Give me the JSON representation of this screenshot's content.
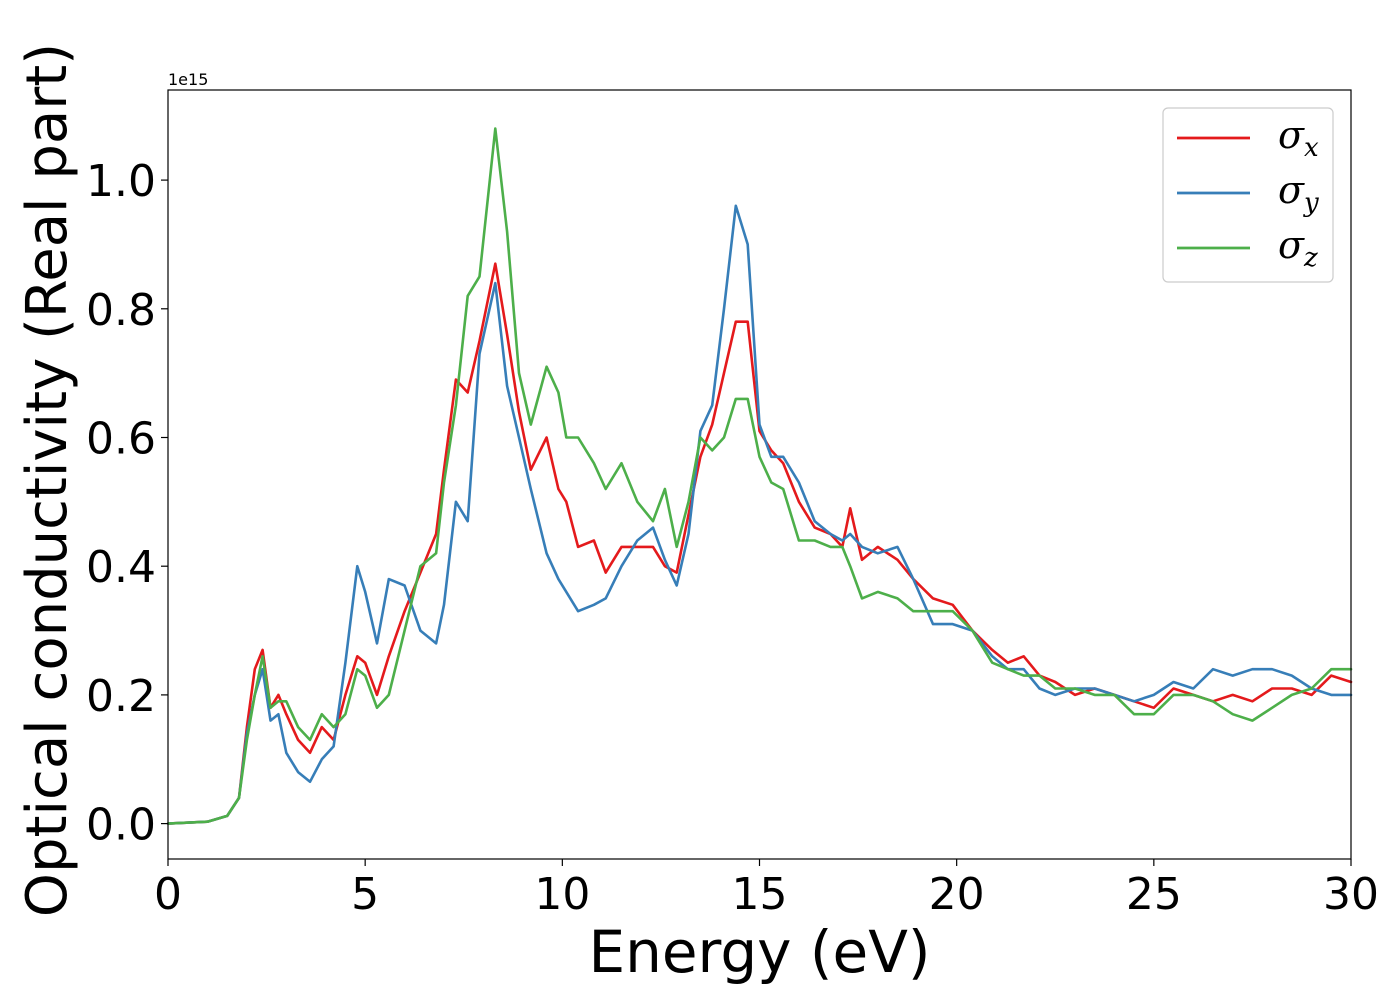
{
  "chart_data": {
    "type": "line",
    "title": "",
    "xlabel": "Energy (eV)",
    "ylabel": "Optical conductivity (Real part)",
    "y_offset_label": "1e15",
    "xlim": [
      0,
      30
    ],
    "ylim": [
      -0.055,
      1.14
    ],
    "y_scale_factor": 1000000000000000.0,
    "x_ticks": [
      0,
      5,
      10,
      15,
      20,
      25,
      30
    ],
    "x_tick_labels": [
      "0",
      "5",
      "10",
      "15",
      "20",
      "25",
      "30"
    ],
    "y_ticks": [
      0.0,
      0.2,
      0.4,
      0.6,
      0.8,
      1.0
    ],
    "y_tick_labels": [
      "0.0",
      "0.2",
      "0.4",
      "0.6",
      "0.8",
      "1.0"
    ],
    "grid": false,
    "legend": "top-right",
    "series": [
      {
        "name": "σx",
        "label_base": "σ",
        "label_sub": "x",
        "color": "#e41a1c",
        "x": [
          0,
          1,
          1.5,
          1.8,
          2.0,
          2.2,
          2.4,
          2.6,
          2.8,
          3.0,
          3.3,
          3.6,
          3.9,
          4.2,
          4.5,
          4.8,
          5.0,
          5.3,
          5.6,
          6.0,
          6.4,
          6.8,
          7.0,
          7.3,
          7.6,
          7.9,
          8.3,
          8.6,
          8.9,
          9.2,
          9.6,
          9.9,
          10.1,
          10.4,
          10.8,
          11.1,
          11.5,
          11.9,
          12.3,
          12.6,
          12.9,
          13.2,
          13.5,
          13.8,
          14.1,
          14.4,
          14.7,
          15.0,
          15.3,
          15.6,
          16.0,
          16.4,
          16.8,
          17.1,
          17.3,
          17.6,
          18.0,
          18.5,
          18.9,
          19.4,
          19.9,
          20.4,
          20.9,
          21.3,
          21.7,
          22.1,
          22.5,
          23.0,
          23.5,
          24.0,
          24.5,
          25.0,
          25.5,
          26.0,
          26.5,
          27.0,
          27.5,
          28.0,
          28.5,
          29.0,
          29.5,
          30.0
        ],
        "values": [
          0,
          0.003,
          0.012,
          0.04,
          0.15,
          0.24,
          0.27,
          0.18,
          0.2,
          0.17,
          0.13,
          0.11,
          0.15,
          0.13,
          0.2,
          0.26,
          0.25,
          0.2,
          0.26,
          0.33,
          0.39,
          0.45,
          0.55,
          0.69,
          0.67,
          0.75,
          0.87,
          0.76,
          0.64,
          0.55,
          0.6,
          0.52,
          0.5,
          0.43,
          0.44,
          0.39,
          0.43,
          0.43,
          0.43,
          0.4,
          0.39,
          0.48,
          0.57,
          0.62,
          0.7,
          0.78,
          0.78,
          0.61,
          0.58,
          0.56,
          0.5,
          0.46,
          0.45,
          0.43,
          0.49,
          0.41,
          0.43,
          0.41,
          0.38,
          0.35,
          0.34,
          0.3,
          0.27,
          0.25,
          0.26,
          0.23,
          0.22,
          0.2,
          0.21,
          0.2,
          0.19,
          0.18,
          0.21,
          0.2,
          0.19,
          0.2,
          0.19,
          0.21,
          0.21,
          0.2,
          0.23,
          0.22
        ]
      },
      {
        "name": "σy",
        "label_base": "σ",
        "label_sub": "y",
        "color": "#377eb8",
        "x": [
          0,
          1,
          1.5,
          1.8,
          2.0,
          2.2,
          2.4,
          2.6,
          2.8,
          3.0,
          3.3,
          3.6,
          3.9,
          4.2,
          4.5,
          4.8,
          5.0,
          5.3,
          5.6,
          6.0,
          6.4,
          6.8,
          7.0,
          7.3,
          7.6,
          7.9,
          8.3,
          8.6,
          8.9,
          9.2,
          9.6,
          9.9,
          10.1,
          10.4,
          10.8,
          11.1,
          11.5,
          11.9,
          12.3,
          12.6,
          12.9,
          13.2,
          13.5,
          13.8,
          14.1,
          14.4,
          14.7,
          15.0,
          15.3,
          15.6,
          16.0,
          16.4,
          16.8,
          17.1,
          17.3,
          17.6,
          18.0,
          18.5,
          18.9,
          19.4,
          19.9,
          20.4,
          20.9,
          21.3,
          21.7,
          22.1,
          22.5,
          23.0,
          23.5,
          24.0,
          24.5,
          25.0,
          25.5,
          26.0,
          26.5,
          27.0,
          27.5,
          28.0,
          28.5,
          29.0,
          29.5,
          30.0
        ],
        "values": [
          0,
          0.003,
          0.012,
          0.04,
          0.14,
          0.2,
          0.24,
          0.16,
          0.17,
          0.11,
          0.08,
          0.065,
          0.1,
          0.12,
          0.25,
          0.4,
          0.36,
          0.28,
          0.38,
          0.37,
          0.3,
          0.28,
          0.34,
          0.5,
          0.47,
          0.73,
          0.84,
          0.68,
          0.6,
          0.52,
          0.42,
          0.38,
          0.36,
          0.33,
          0.34,
          0.35,
          0.4,
          0.44,
          0.46,
          0.41,
          0.37,
          0.45,
          0.61,
          0.65,
          0.8,
          0.96,
          0.9,
          0.62,
          0.57,
          0.57,
          0.53,
          0.47,
          0.45,
          0.44,
          0.45,
          0.43,
          0.42,
          0.43,
          0.38,
          0.31,
          0.31,
          0.3,
          0.26,
          0.24,
          0.24,
          0.21,
          0.2,
          0.21,
          0.21,
          0.2,
          0.19,
          0.2,
          0.22,
          0.21,
          0.24,
          0.23,
          0.24,
          0.24,
          0.23,
          0.21,
          0.2,
          0.2
        ]
      },
      {
        "name": "σz",
        "label_base": "σ",
        "label_sub": "z",
        "color": "#4daf4a",
        "x": [
          0,
          1,
          1.5,
          1.8,
          2.0,
          2.2,
          2.4,
          2.6,
          2.8,
          3.0,
          3.3,
          3.6,
          3.9,
          4.2,
          4.5,
          4.8,
          5.0,
          5.3,
          5.6,
          6.0,
          6.4,
          6.8,
          7.0,
          7.3,
          7.6,
          7.9,
          8.3,
          8.6,
          8.9,
          9.2,
          9.6,
          9.9,
          10.1,
          10.4,
          10.8,
          11.1,
          11.5,
          11.9,
          12.3,
          12.6,
          12.9,
          13.2,
          13.5,
          13.8,
          14.1,
          14.4,
          14.7,
          15.0,
          15.3,
          15.6,
          16.0,
          16.4,
          16.8,
          17.1,
          17.3,
          17.6,
          18.0,
          18.5,
          18.9,
          19.4,
          19.9,
          20.4,
          20.9,
          21.3,
          21.7,
          22.1,
          22.5,
          23.0,
          23.5,
          24.0,
          24.5,
          25.0,
          25.5,
          26.0,
          26.5,
          27.0,
          27.5,
          28.0,
          28.5,
          29.0,
          29.5,
          30.0
        ],
        "values": [
          0,
          0.003,
          0.012,
          0.04,
          0.13,
          0.2,
          0.26,
          0.18,
          0.19,
          0.19,
          0.15,
          0.13,
          0.17,
          0.15,
          0.17,
          0.24,
          0.23,
          0.18,
          0.2,
          0.3,
          0.4,
          0.42,
          0.53,
          0.65,
          0.82,
          0.85,
          1.08,
          0.92,
          0.7,
          0.62,
          0.71,
          0.67,
          0.6,
          0.6,
          0.56,
          0.52,
          0.56,
          0.5,
          0.47,
          0.52,
          0.43,
          0.5,
          0.6,
          0.58,
          0.6,
          0.66,
          0.66,
          0.57,
          0.53,
          0.52,
          0.44,
          0.44,
          0.43,
          0.43,
          0.4,
          0.35,
          0.36,
          0.35,
          0.33,
          0.33,
          0.33,
          0.3,
          0.25,
          0.24,
          0.23,
          0.23,
          0.21,
          0.21,
          0.2,
          0.2,
          0.17,
          0.17,
          0.2,
          0.2,
          0.19,
          0.17,
          0.16,
          0.18,
          0.2,
          0.21,
          0.24,
          0.24
        ]
      }
    ]
  }
}
